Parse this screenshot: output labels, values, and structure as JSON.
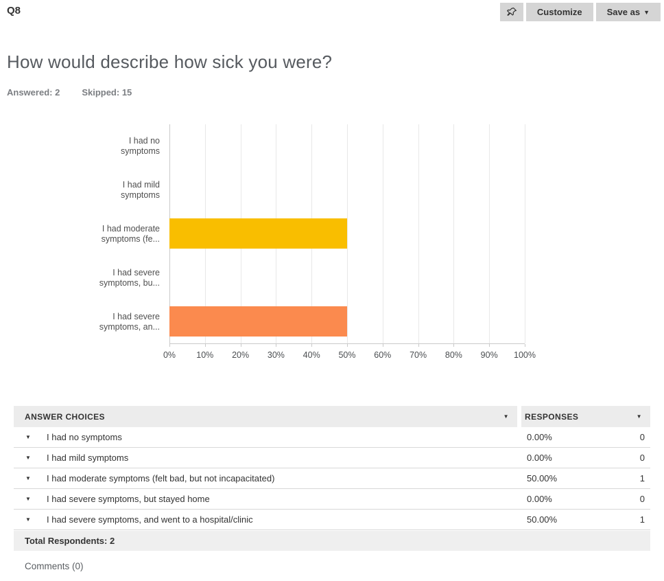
{
  "header": {
    "question_number": "Q8",
    "customize_label": "Customize",
    "save_as_label": "Save as"
  },
  "question": {
    "title": "How would describe how sick you were?",
    "answered": "Answered: 2",
    "skipped": "Skipped: 15"
  },
  "icons": {
    "caret_down": "▼",
    "row_caret": "▼",
    "pin_icon": "pushpin-icon"
  },
  "colors": {
    "bar_yellow": "#F9BE00",
    "bar_orange": "#FB8A4E",
    "button_bg": "#D5D5D5",
    "table_header_bg": "#ECECEC",
    "total_row_bg": "#EFEFEF",
    "gridline": "#E8E8E8",
    "axis_line": "#C9C9C9"
  },
  "chart_data": {
    "type": "bar",
    "orientation": "horizontal",
    "categories": [
      "I had no symptoms",
      "I had mild symptoms",
      "I had moderate symptoms (felt bad, but not incapacitated)",
      "I had severe symptoms, but stayed home",
      "I had severe symptoms, and went to a hospital/clinic"
    ],
    "categories_display": [
      [
        "I had no",
        "symptoms"
      ],
      [
        "I had mild",
        "symptoms"
      ],
      [
        "I had moderate",
        "symptoms (fe..."
      ],
      [
        "I had severe",
        "symptoms, bu..."
      ],
      [
        "I had severe",
        "symptoms, an..."
      ]
    ],
    "values": [
      0,
      0,
      50,
      0,
      50
    ],
    "unit": "%",
    "bar_colors": [
      "",
      "",
      "#F9BE00",
      "",
      "#FB8A4E"
    ],
    "x_ticks": [
      "0%",
      "10%",
      "20%",
      "30%",
      "40%",
      "50%",
      "60%",
      "70%",
      "80%",
      "90%",
      "100%"
    ],
    "xlim": [
      0,
      100
    ],
    "grid": true,
    "legend": "none",
    "title": ""
  },
  "table": {
    "columns": [
      "ANSWER CHOICES",
      "RESPONSES"
    ],
    "rows": [
      {
        "choice": "I had no symptoms",
        "percent": "0.00%",
        "count": "0"
      },
      {
        "choice": "I had mild symptoms",
        "percent": "0.00%",
        "count": "0"
      },
      {
        "choice": "I had moderate symptoms (felt bad, but not incapacitated)",
        "percent": "50.00%",
        "count": "1"
      },
      {
        "choice": "I had severe symptoms, but stayed home",
        "percent": "0.00%",
        "count": "0"
      },
      {
        "choice": "I had severe symptoms, and went to a hospital/clinic",
        "percent": "50.00%",
        "count": "1"
      }
    ],
    "total_label": "Total Respondents: 2",
    "comments_label": "Comments (0)"
  }
}
